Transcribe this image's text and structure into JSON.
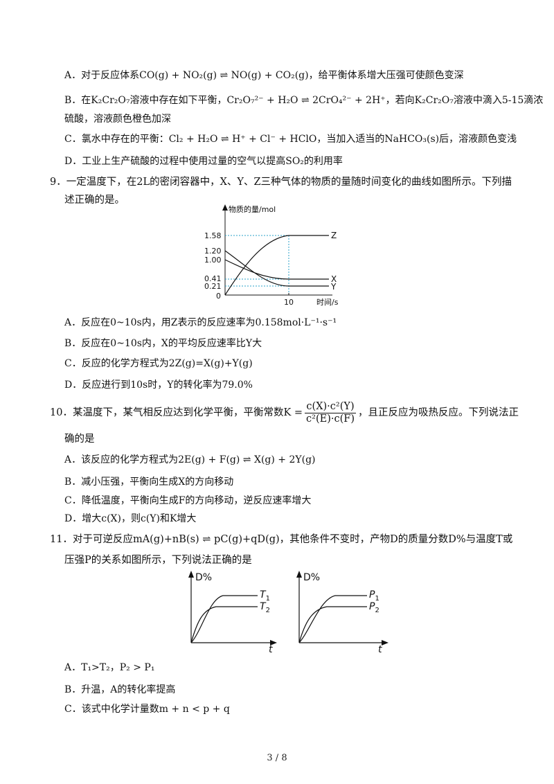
{
  "q8": {
    "A": "A．对于反应体系CO(g) + NO₂(g) ⇌ NO(g) + CO₂(g)，给平衡体系增大压强可使颜色变深",
    "B1": "B．在K₂Cr₂O₇溶液中存在如下平衡，Cr₂O₇²⁻ + H₂O ⇌ 2CrO₄²⁻ + 2H⁺，若向K₂Cr₂O₇溶液中滴入5-15滴浓",
    "B2": "硫酸，溶液颜色橙色加深",
    "C": "C．氯水中存在的平衡：Cl₂ + H₂O ⇌ H⁺ + Cl⁻ + HClO，当加入适当的NaHCO₃(s)后，溶液颜色变浅",
    "D": "D．工业上生产硫酸的过程中使用过量的空气以提高SO₂的利用率"
  },
  "q9": {
    "stem1": "9．一定温度下，在2L的密闭容器中，X、Y、Z三种气体的物质的量随时间变化的曲线如图所示。下列描",
    "stem2": "述正确的是。",
    "graph": {
      "ylabel": "物质的量/mol",
      "xlabel": "时间/s",
      "yticks": [
        "1.58",
        "1.20",
        "1.00",
        "0.41",
        "0.21",
        "0"
      ],
      "xtick": "10",
      "series_labels": [
        "Z",
        "X",
        "Y"
      ]
    },
    "A": "A．反应在0~10s内，用Z表示的反应速率为0.158mol·L⁻¹·s⁻¹",
    "B": "B．反应在0~10s内，X的平均反应速率比Y大",
    "C": "C．反应的化学方程式为2Z(g)=X(g)+Y(g)",
    "D": "D．反应进行到10s时，Y的转化率为79.0%"
  },
  "q10": {
    "stem_pre": "10．某温度下，某气相反应达到化学平衡，平衡常数K =",
    "frac_num": "c(X)·c²(Y)",
    "frac_den": "c²(E)·c(F)",
    "stem_post": "，且正反应为吸热反应。下列说法正",
    "stem2": "确的是",
    "A": "A．该反应的化学方程式为2E(g) + F(g) ⇌ X(g) + 2Y(g)",
    "B": "B．减小压强，平衡向生成X的方向移动",
    "C": "C．降低温度，平衡向生成F的方向移动，逆反应速率增大",
    "D": "D．增大c(X)，则c(Y)和K增大"
  },
  "q11": {
    "stem1": "11．对于可逆反应mA(g)+nB(s) ⇌ pC(g)+qD(g)，其他条件不变时，产物D的质量分数D%与温度T或",
    "stem2": "压强P的关系如图所示，下列说法正确的是",
    "graph1": {
      "ylabel": "D%",
      "xlabel": "t",
      "label_top": "T",
      "label_top_sub": "1",
      "label_bot": "T",
      "label_bot_sub": "2"
    },
    "graph2": {
      "ylabel": "D%",
      "xlabel": "t",
      "label_top": "P",
      "label_top_sub": "1",
      "label_bot": "P",
      "label_bot_sub": "2"
    },
    "A": "A．T₁>T₂，P₂ > P₁",
    "B": "B．升温，A的转化率提高",
    "C": "C．该式中化学计量数m + n < p + q"
  },
  "footer": {
    "page": "3 / 8"
  }
}
